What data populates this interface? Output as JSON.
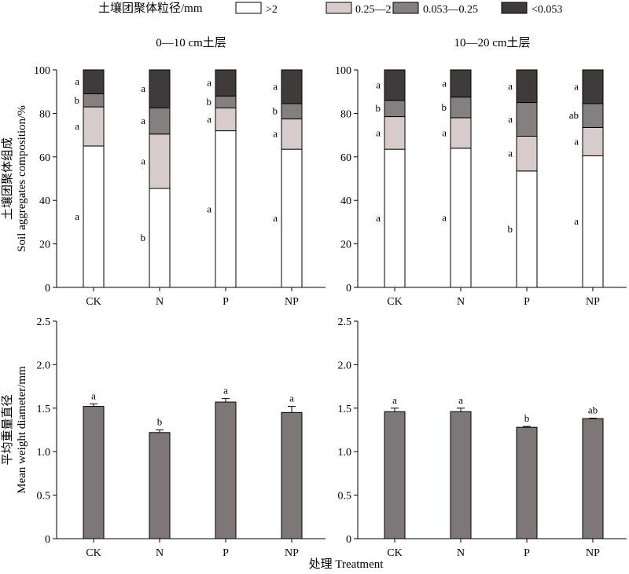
{
  "legend": {
    "title": "土壤团聚体粒径/mm",
    "items": [
      {
        "label": ">2",
        "color": "#ffffff"
      },
      {
        "label": "0.25—2",
        "color": "#d8cbcb"
      },
      {
        "label": "0.053—0.25",
        "color": "#858080"
      },
      {
        "label": "<0.053",
        "color": "#3f3b3b"
      }
    ]
  },
  "x_axis_label": "处理 Treatment",
  "colors": {
    "mwd_bar": "#7e7777",
    "axis": "#000000"
  },
  "chart_data": [
    {
      "type": "bar",
      "stacked": true,
      "title": "0—10 cm土层",
      "ylabel_cn": "土壤团聚体组成",
      "ylabel": "Soil aggregates composition/%",
      "ylim": [
        0,
        100
      ],
      "yticks": [
        "0",
        "20",
        "40",
        "60",
        "80",
        "100"
      ],
      "categories": [
        "CK",
        "N",
        "P",
        "NP"
      ],
      "series": [
        {
          "name": ">2",
          "values": [
            65,
            45.5,
            72,
            63.5
          ],
          "letters": [
            "a",
            "b",
            "a",
            "a"
          ]
        },
        {
          "name": "0.25—2",
          "values": [
            18,
            25,
            10.5,
            14
          ],
          "letters": [
            "a",
            "a",
            "a",
            "a"
          ]
        },
        {
          "name": "0.053—0.25",
          "values": [
            6,
            12,
            5.5,
            7
          ],
          "letters": [
            "b",
            "a",
            "b",
            "b"
          ]
        },
        {
          "name": "<0.053",
          "values": [
            11,
            17.5,
            12,
            15.5
          ],
          "letters": [
            "a",
            "a",
            "a",
            "a"
          ]
        }
      ]
    },
    {
      "type": "bar",
      "stacked": true,
      "title": "10—20 cm土层",
      "ylim": [
        0,
        100
      ],
      "yticks": [
        "0",
        "20",
        "40",
        "60",
        "80",
        "100"
      ],
      "categories": [
        "CK",
        "N",
        "P",
        "NP"
      ],
      "series": [
        {
          "name": ">2",
          "values": [
            63.5,
            64,
            53.5,
            60.5
          ],
          "letters": [
            "a",
            "a",
            "b",
            "a"
          ]
        },
        {
          "name": "0.25—2",
          "values": [
            15,
            14,
            16,
            13
          ],
          "letters": [
            "a",
            "a",
            "a",
            "a"
          ]
        },
        {
          "name": "0.053—0.25",
          "values": [
            7.5,
            9.5,
            15.5,
            11
          ],
          "letters": [
            "b",
            "b",
            "a",
            "ab"
          ]
        },
        {
          "name": "<0.053",
          "values": [
            14,
            12.5,
            15,
            15.5
          ],
          "letters": [
            "a",
            "a",
            "a",
            "a"
          ]
        }
      ]
    },
    {
      "type": "bar",
      "ylabel_cn": "平均重量直径",
      "ylabel": "Mean weight diameter/mm",
      "ylim": [
        0,
        2.5
      ],
      "yticks": [
        "0",
        "0.5",
        "1.0",
        "1.5",
        "2.0",
        "2.5"
      ],
      "categories": [
        "CK",
        "N",
        "P",
        "NP"
      ],
      "values": [
        1.52,
        1.22,
        1.57,
        1.45
      ],
      "errors": [
        0.03,
        0.03,
        0.04,
        0.07
      ],
      "letters": [
        "a",
        "b",
        "a",
        "a"
      ]
    },
    {
      "type": "bar",
      "ylim": [
        0,
        2.5
      ],
      "yticks": [
        "0",
        "0.5",
        "1.0",
        "1.5",
        "2.0",
        "2.5"
      ],
      "categories": [
        "CK",
        "N",
        "P",
        "NP"
      ],
      "values": [
        1.46,
        1.46,
        1.28,
        1.38
      ],
      "errors": [
        0.04,
        0.04,
        0.01,
        0.005
      ],
      "letters": [
        "a",
        "a",
        "b",
        "ab"
      ]
    }
  ]
}
